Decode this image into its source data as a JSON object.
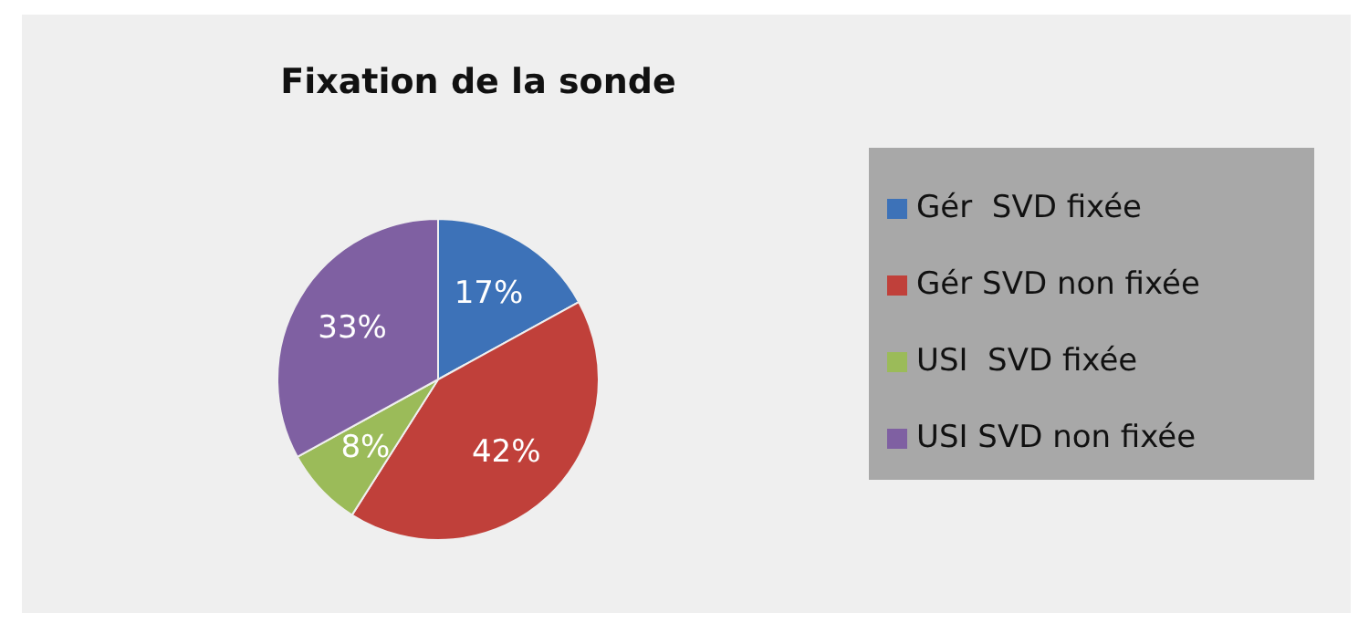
{
  "chart_data": {
    "type": "pie",
    "title": "Fixation de la sonde",
    "categories": [
      "Gér  SVD fixée",
      "Gér SVD non fixée",
      "USI  SVD fixée",
      "USI SVD non fixée"
    ],
    "values": [
      17,
      42,
      8,
      33
    ],
    "colors": [
      "#3d72b8",
      "#c0403a",
      "#9bbb59",
      "#7f60a2"
    ],
    "value_labels": [
      "17%",
      "42%",
      "8%",
      "33%"
    ],
    "legend": "right"
  }
}
